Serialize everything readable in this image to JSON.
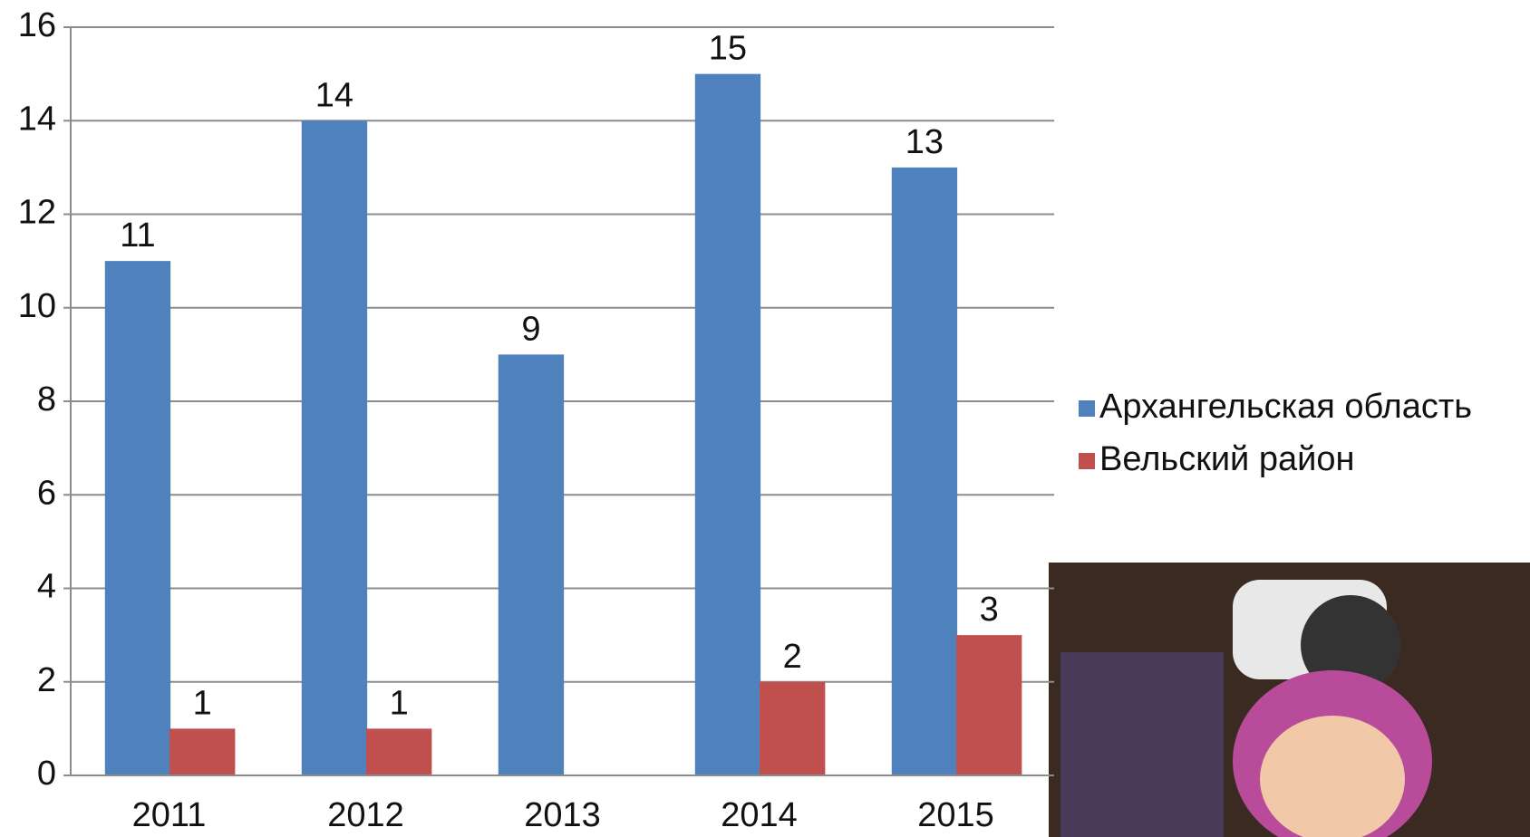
{
  "chart_data": {
    "type": "bar",
    "categories": [
      "2011",
      "2012",
      "2013",
      "2014",
      "2015"
    ],
    "series": [
      {
        "name": "Архангельская область",
        "color": "#4f81bd",
        "values": [
          11,
          14,
          9,
          15,
          13
        ]
      },
      {
        "name": "Вельский район",
        "color": "#c0504d",
        "values": [
          1,
          1,
          null,
          2,
          3
        ]
      }
    ],
    "ylim": [
      0,
      16
    ],
    "yticks": [
      0,
      2,
      4,
      6,
      8,
      10,
      12,
      14,
      16
    ],
    "grid": true,
    "legend": "right"
  }
}
